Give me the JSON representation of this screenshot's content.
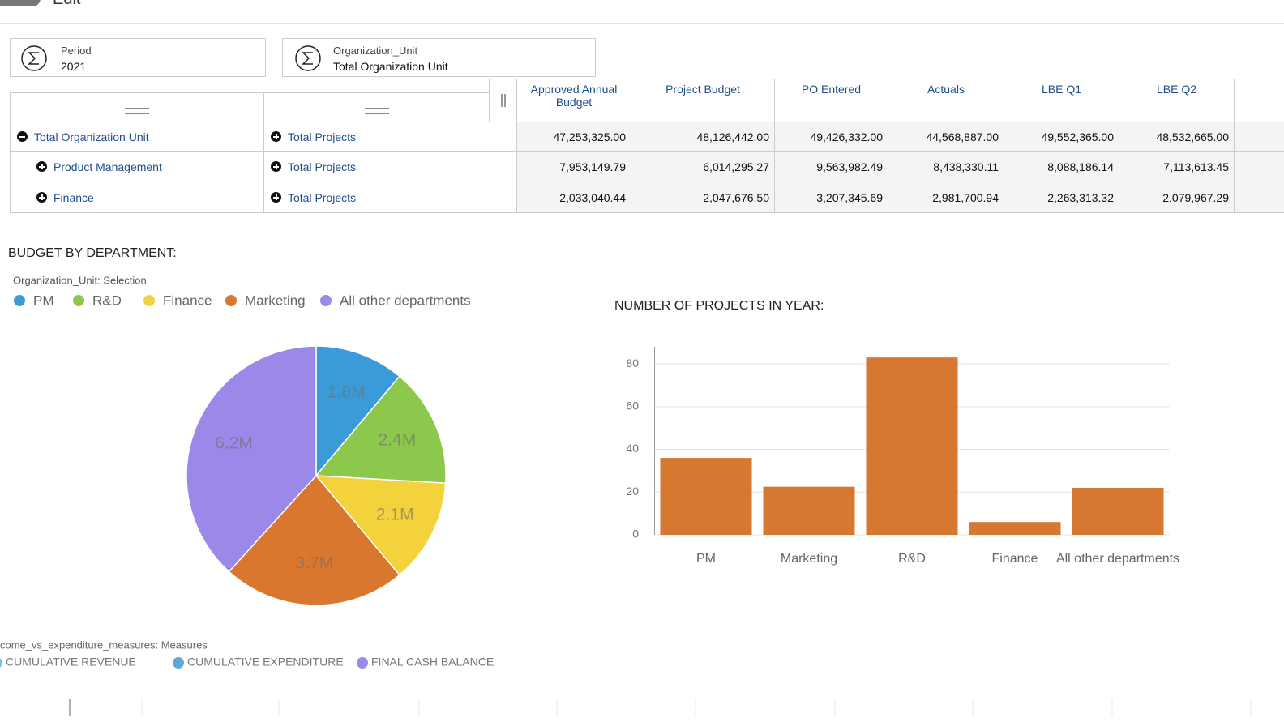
{
  "toolbar": {
    "edit_label": "Edit"
  },
  "filters": [
    {
      "label": "Period",
      "value": "2021"
    },
    {
      "label": "Organization_Unit",
      "value": "Total Organization Unit"
    }
  ],
  "table": {
    "columns": [
      "Approved Annual Budget",
      "Project Budget",
      "PO Entered",
      "Actuals",
      "LBE Q1",
      "LBE Q2"
    ],
    "rows": [
      {
        "unit": "Total Organization Unit",
        "project": "Total Projects",
        "expanded": true,
        "cells": [
          "47,253,325.00",
          "48,126,442.00",
          "49,426,332.00",
          "44,568,887.00",
          "49,552,365.00",
          "48,532,665.00"
        ]
      },
      {
        "unit": "Product Management",
        "project": "Total Projects",
        "expanded": false,
        "cells": [
          "7,953,149.79",
          "6,014,295.27",
          "9,563,982.49",
          "8,438,330.11",
          "8,088,186.14",
          "7,113,613.45"
        ]
      },
      {
        "unit": "Finance",
        "project": "Total Projects",
        "expanded": false,
        "cells": [
          "2,033,040.44",
          "2,047,676.50",
          "3,207,345.69",
          "2,981,700.94",
          "2,263,313.32",
          "2,079,967.29"
        ]
      }
    ]
  },
  "chart_data": [
    {
      "type": "pie",
      "title": "BUDGET BY DEPARTMENT:",
      "subtitle": "Organization_Unit: Selection",
      "categories": [
        "PM",
        "R&D",
        "Finance",
        "Marketing",
        "All other departments"
      ],
      "values": [
        1.8,
        2.4,
        2.1,
        3.7,
        6.2
      ],
      "value_labels": [
        "1.8M",
        "2.4M",
        "2.1M",
        "3.7M",
        "6.2M"
      ],
      "colors": [
        "#3b9bd8",
        "#8cc84b",
        "#f3d23c",
        "#d9772f",
        "#9c88e8"
      ]
    },
    {
      "type": "bar",
      "title": "NUMBER OF PROJECTS IN YEAR:",
      "categories": [
        "PM",
        "Marketing",
        "R&D",
        "Finance",
        "All other departments"
      ],
      "values": [
        36,
        22.5,
        83,
        6,
        22
      ],
      "color": "#d6782f",
      "ylim": [
        0,
        88
      ],
      "yticks": [
        0,
        20,
        40,
        60,
        80
      ],
      "grid": true
    }
  ],
  "bottom_legend": {
    "title": "come_vs_expenditure_measures: Measures",
    "items": [
      {
        "name": "CUMULATIVE REVENUE",
        "color": "#7fc7e6"
      },
      {
        "name": "CUMULATIVE EXPENDITURE",
        "color": "#5aa9d6"
      },
      {
        "name": "FINAL CASH BALANCE",
        "color": "#9c88e8"
      }
    ]
  }
}
